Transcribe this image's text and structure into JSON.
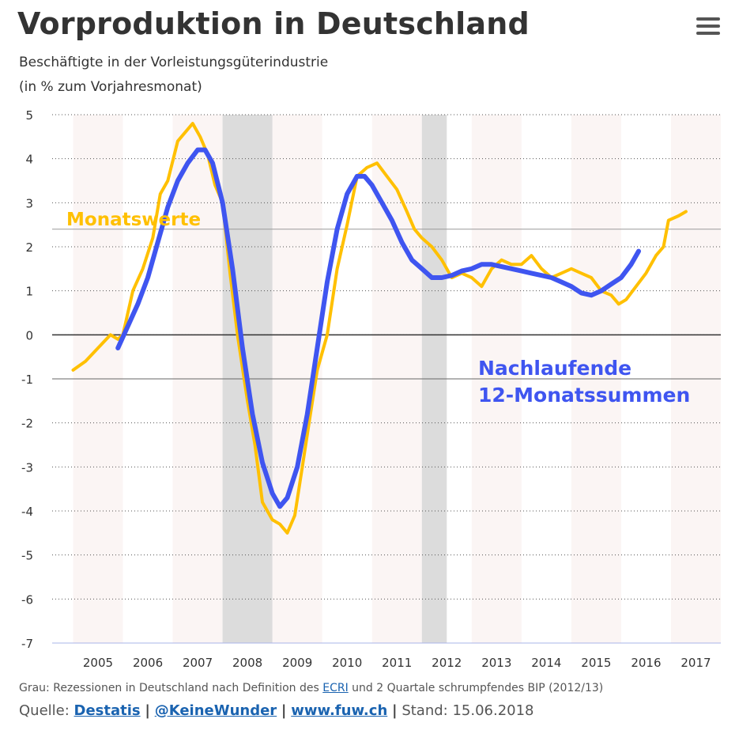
{
  "header": {
    "title": "Vorproduktion in Deutschland",
    "subtitle_line1": "Beschäftigte in der Vorleistungsgüterindustrie",
    "subtitle_line2": "(in % zum Vorjahresmonat)"
  },
  "menu": {
    "icon": "hamburger-menu-icon"
  },
  "colors": {
    "monthly": "#FFC000",
    "trailing": "#3F55F0",
    "recession": "#DCDCDC",
    "band": "#FBF5F4"
  },
  "chart_data": {
    "type": "line",
    "title": "Vorproduktion in Deutschland",
    "ylim": [
      -7,
      5
    ],
    "xlim": [
      2004.58,
      2018.0
    ],
    "y_ticks": [
      "5",
      "4",
      "3",
      "2",
      "1",
      "0",
      "-1",
      "-2",
      "-3",
      "-4",
      "-5",
      "-6",
      "-7"
    ],
    "x_tick_labels": [
      "2005",
      "2006",
      "2007",
      "2008",
      "2009",
      "2010",
      "2011",
      "2012",
      "2013",
      "2014",
      "2015",
      "2016",
      "2017"
    ],
    "reference_lines": [
      0,
      -1,
      2.4
    ],
    "recessions": [
      [
        2008.0,
        2009.0
      ],
      [
        2012.0,
        2012.5
      ]
    ],
    "shaded_years": [
      2005,
      2007,
      2009,
      2011,
      2013,
      2015,
      2017
    ],
    "annotations": {
      "monthly_label": "Monatswerte",
      "trailing_label_line1": "Nachlaufende",
      "trailing_label_line2": "12-Monatssummen"
    },
    "series": [
      {
        "name": "Monatswerte",
        "color": "#FFC000",
        "points": [
          [
            2005.0,
            -0.8
          ],
          [
            2005.25,
            -0.6
          ],
          [
            2005.5,
            -0.3
          ],
          [
            2005.75,
            0.0
          ],
          [
            2005.9,
            -0.1
          ],
          [
            2006.0,
            0.0
          ],
          [
            2006.2,
            1.0
          ],
          [
            2006.4,
            1.5
          ],
          [
            2006.6,
            2.2
          ],
          [
            2006.75,
            3.2
          ],
          [
            2006.9,
            3.5
          ],
          [
            2007.1,
            4.4
          ],
          [
            2007.25,
            4.6
          ],
          [
            2007.4,
            4.8
          ],
          [
            2007.55,
            4.5
          ],
          [
            2007.7,
            4.1
          ],
          [
            2007.85,
            3.4
          ],
          [
            2008.0,
            3.0
          ],
          [
            2008.15,
            1.4
          ],
          [
            2008.3,
            0.0
          ],
          [
            2008.5,
            -1.5
          ],
          [
            2008.65,
            -2.5
          ],
          [
            2008.8,
            -3.8
          ],
          [
            2009.0,
            -4.2
          ],
          [
            2009.15,
            -4.3
          ],
          [
            2009.3,
            -4.5
          ],
          [
            2009.45,
            -4.1
          ],
          [
            2009.6,
            -3.0
          ],
          [
            2009.75,
            -1.9
          ],
          [
            2009.9,
            -0.8
          ],
          [
            2010.1,
            0.0
          ],
          [
            2010.3,
            1.5
          ],
          [
            2010.5,
            2.5
          ],
          [
            2010.7,
            3.6
          ],
          [
            2010.9,
            3.8
          ],
          [
            2011.1,
            3.9
          ],
          [
            2011.3,
            3.6
          ],
          [
            2011.5,
            3.3
          ],
          [
            2011.7,
            2.8
          ],
          [
            2011.85,
            2.4
          ],
          [
            2012.0,
            2.2
          ],
          [
            2012.2,
            2.0
          ],
          [
            2012.4,
            1.7
          ],
          [
            2012.6,
            1.3
          ],
          [
            2012.8,
            1.4
          ],
          [
            2013.0,
            1.3
          ],
          [
            2013.2,
            1.1
          ],
          [
            2013.4,
            1.5
          ],
          [
            2013.6,
            1.7
          ],
          [
            2013.8,
            1.6
          ],
          [
            2014.0,
            1.6
          ],
          [
            2014.2,
            1.8
          ],
          [
            2014.4,
            1.5
          ],
          [
            2014.6,
            1.3
          ],
          [
            2014.8,
            1.4
          ],
          [
            2015.0,
            1.5
          ],
          [
            2015.2,
            1.4
          ],
          [
            2015.4,
            1.3
          ],
          [
            2015.6,
            1.0
          ],
          [
            2015.8,
            0.9
          ],
          [
            2015.95,
            0.7
          ],
          [
            2016.1,
            0.8
          ],
          [
            2016.3,
            1.1
          ],
          [
            2016.5,
            1.4
          ],
          [
            2016.7,
            1.8
          ],
          [
            2016.85,
            2.0
          ],
          [
            2016.95,
            2.6
          ],
          [
            2017.15,
            2.7
          ],
          [
            2017.3,
            2.8
          ]
        ]
      },
      {
        "name": "Nachlaufende 12-Monatssummen",
        "color": "#3F55F0",
        "points": [
          [
            2005.9,
            -0.3
          ],
          [
            2006.1,
            0.2
          ],
          [
            2006.3,
            0.7
          ],
          [
            2006.5,
            1.3
          ],
          [
            2006.7,
            2.1
          ],
          [
            2006.9,
            2.9
          ],
          [
            2007.1,
            3.5
          ],
          [
            2007.3,
            3.9
          ],
          [
            2007.5,
            4.2
          ],
          [
            2007.65,
            4.2
          ],
          [
            2007.8,
            3.9
          ],
          [
            2008.0,
            3.0
          ],
          [
            2008.2,
            1.5
          ],
          [
            2008.4,
            -0.3
          ],
          [
            2008.6,
            -1.8
          ],
          [
            2008.8,
            -2.9
          ],
          [
            2009.0,
            -3.6
          ],
          [
            2009.15,
            -3.9
          ],
          [
            2009.3,
            -3.7
          ],
          [
            2009.5,
            -3.0
          ],
          [
            2009.7,
            -1.8
          ],
          [
            2009.9,
            -0.3
          ],
          [
            2010.1,
            1.2
          ],
          [
            2010.3,
            2.4
          ],
          [
            2010.5,
            3.2
          ],
          [
            2010.7,
            3.6
          ],
          [
            2010.85,
            3.6
          ],
          [
            2011.0,
            3.4
          ],
          [
            2011.2,
            3.0
          ],
          [
            2011.4,
            2.6
          ],
          [
            2011.6,
            2.1
          ],
          [
            2011.8,
            1.7
          ],
          [
            2012.0,
            1.5
          ],
          [
            2012.2,
            1.3
          ],
          [
            2012.4,
            1.3
          ],
          [
            2012.6,
            1.35
          ],
          [
            2012.8,
            1.45
          ],
          [
            2013.0,
            1.5
          ],
          [
            2013.2,
            1.6
          ],
          [
            2013.4,
            1.6
          ],
          [
            2013.6,
            1.55
          ],
          [
            2013.8,
            1.5
          ],
          [
            2014.0,
            1.45
          ],
          [
            2014.2,
            1.4
          ],
          [
            2014.4,
            1.35
          ],
          [
            2014.6,
            1.3
          ],
          [
            2014.8,
            1.2
          ],
          [
            2015.0,
            1.1
          ],
          [
            2015.2,
            0.95
          ],
          [
            2015.4,
            0.9
          ],
          [
            2015.6,
            1.0
          ],
          [
            2015.8,
            1.15
          ],
          [
            2016.0,
            1.3
          ],
          [
            2016.2,
            1.6
          ],
          [
            2016.35,
            1.9
          ]
        ]
      }
    ]
  },
  "footer": {
    "note_prefix": "Grau: Rezessionen in Deutschland nach Definition des",
    "note_link": "ECRI",
    "note_suffix": "und 2 Quartale schrumpfendes BIP (2012/13)",
    "source_label": "Quelle:",
    "source_link1": "Destatis",
    "source_sep": "|",
    "source_link2": "@KeineWunder",
    "source_link3": "www.fuw.ch",
    "stand": "Stand: 15.06.2018"
  }
}
